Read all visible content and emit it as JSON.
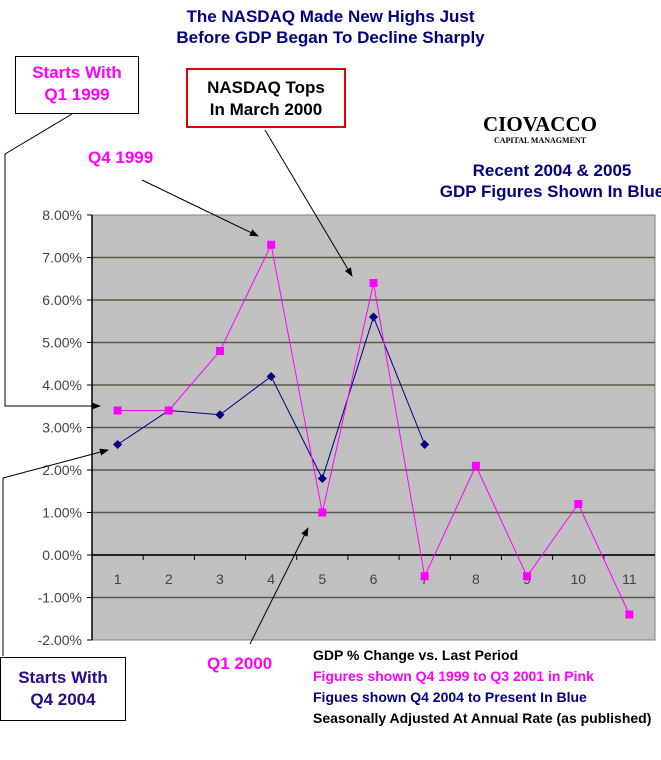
{
  "title_line1": "The NASDAQ Made New Highs Just",
  "title_line2": "Before GDP Began To Decline Sharply",
  "callouts": {
    "starts_q1_1999": [
      "Starts With",
      "Q1 1999"
    ],
    "nasdaq_tops": [
      "NASDAQ Tops",
      "In March 2000"
    ],
    "q4_1999": "Q4 1999",
    "q1_2000": "Q1 2000",
    "starts_q4_2004": [
      "Starts With",
      "Q4 2004"
    ]
  },
  "logo": {
    "name": "CIOVACCO",
    "subtitle": "CAPITAL MANAGMENT"
  },
  "recent_note": [
    "Recent 2004 & 2005",
    "GDP Figures Shown In Blue"
  ],
  "legend_notes": [
    {
      "text": "GDP % Change vs. Last Period",
      "color": "#000000"
    },
    {
      "text": "Figures shown Q4 1999 to Q3 2001 in Pink",
      "color": "#ff00ff"
    },
    {
      "text": "Figues shown Q4 2004 to Present In Blue",
      "color": "#000080"
    },
    {
      "text": "Seasonally Adjusted At Annual Rate (as published)",
      "color": "#000000"
    }
  ],
  "colors": {
    "pink": "#ff00ff",
    "blue": "#000080",
    "plot_bg": "#c0c0c0",
    "title": "#000080"
  },
  "chart_data": {
    "type": "line",
    "title": "The NASDAQ Made New Highs Just Before GDP Began To Decline Sharply",
    "xlabel": "",
    "ylabel": "GDP % Change vs. Last Period",
    "categories": [
      "1",
      "2",
      "3",
      "4",
      "5",
      "6",
      "7",
      "8",
      "9",
      "10",
      "11"
    ],
    "yticks": [
      "8.00%",
      "7.00%",
      "6.00%",
      "5.00%",
      "4.00%",
      "3.00%",
      "2.00%",
      "1.00%",
      "0.00%",
      "-1.00%",
      "-2.00%"
    ],
    "ylim": [
      -2,
      8
    ],
    "grid": true,
    "series": [
      {
        "name": "Figures shown Q4 1999 to Q3 2001 in Pink",
        "color": "#ff00ff",
        "marker": "square",
        "values": [
          3.4,
          3.4,
          4.8,
          7.3,
          1.0,
          6.4,
          -0.5,
          2.1,
          -0.5,
          1.2,
          -1.4
        ]
      },
      {
        "name": "Figues shown Q4 2004 to Present In Blue",
        "color": "#000080",
        "marker": "diamond",
        "values": [
          2.6,
          3.4,
          3.3,
          4.2,
          1.8,
          5.6,
          2.6
        ]
      }
    ]
  }
}
